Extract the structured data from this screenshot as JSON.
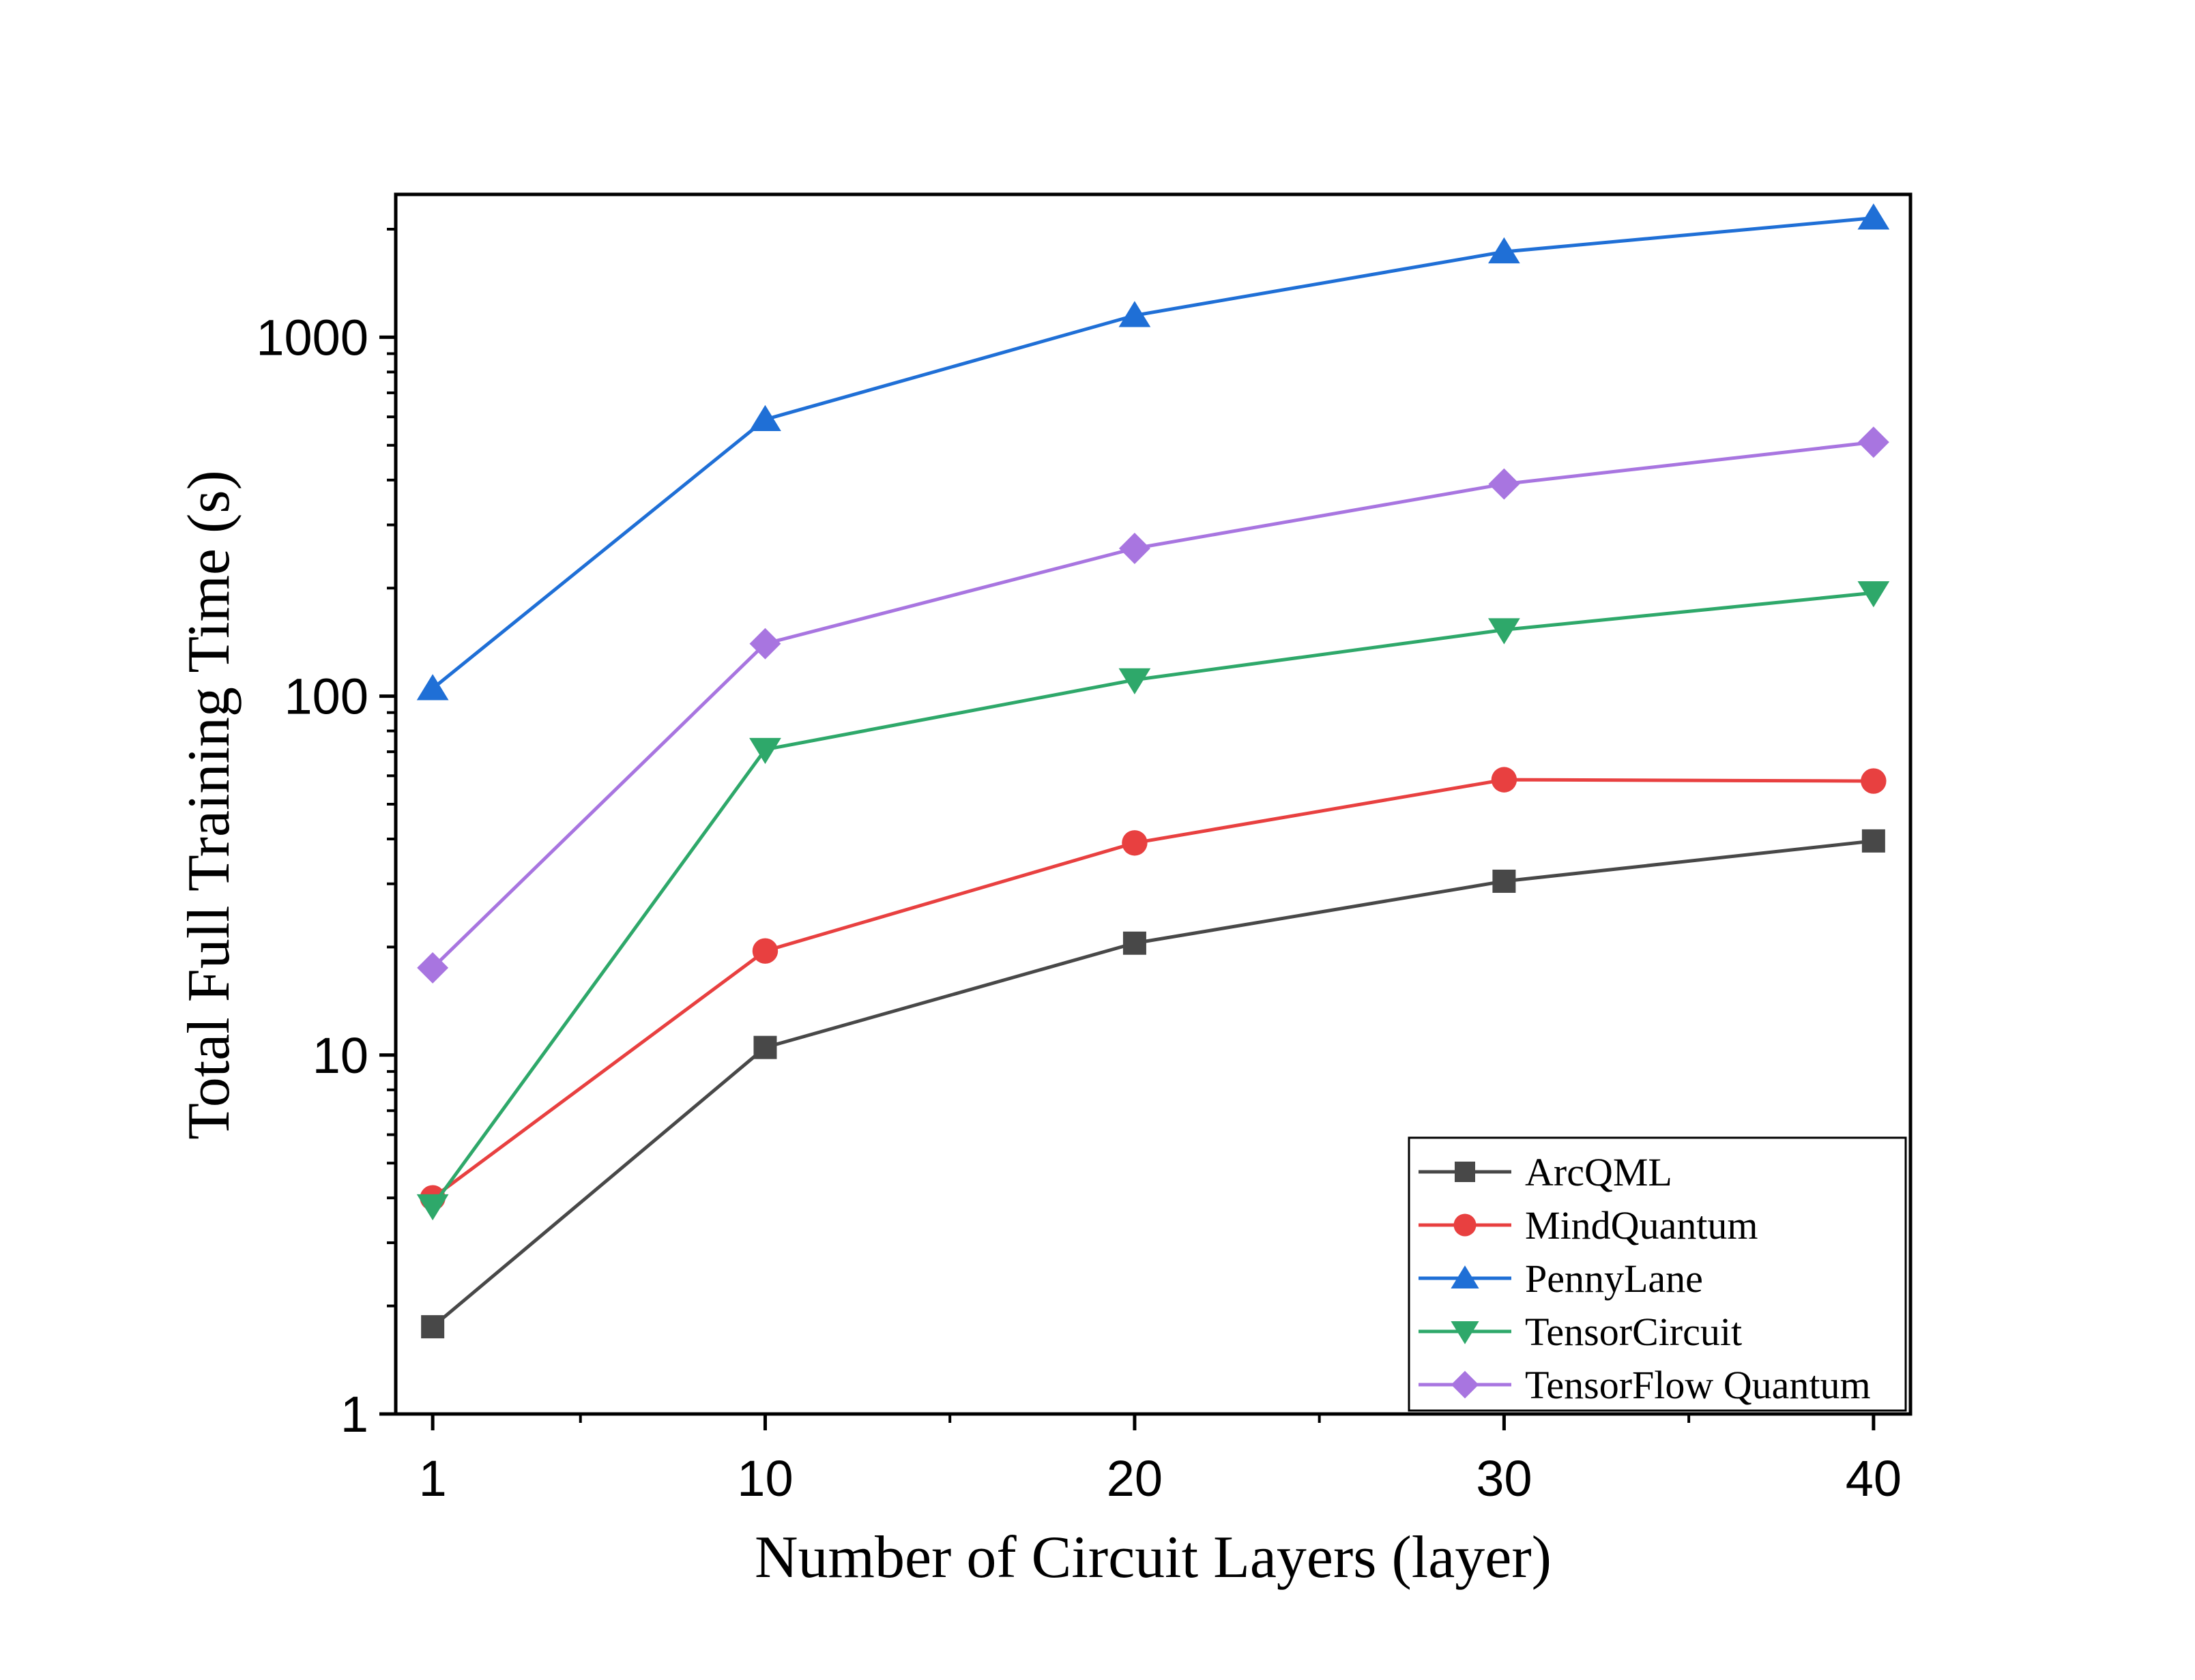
{
  "chart_data": {
    "type": "line",
    "title": "",
    "xlabel": "Number of Circuit Layers (layer)",
    "ylabel": "Total Full Training Time (s)",
    "x": [
      1,
      10,
      20,
      30,
      40
    ],
    "x_ticks": [
      "1",
      "10",
      "20",
      "30",
      "40"
    ],
    "xlim": [
      0,
      41
    ],
    "yscale": "log",
    "y_ticks": [
      "1",
      "10",
      "100",
      "1000"
    ],
    "ylim": [
      1,
      2500
    ],
    "grid": false,
    "legend_position": "bottom-right",
    "series": [
      {
        "name": "ArcQML",
        "marker": "square",
        "color": "#484848",
        "values": [
          1.75,
          10.5,
          20.5,
          30.5,
          39.5
        ]
      },
      {
        "name": "MindQuantum",
        "marker": "circle",
        "color": "#e84040",
        "values": [
          4.0,
          19.5,
          39.0,
          58.5,
          58.0
        ]
      },
      {
        "name": "PennyLane",
        "marker": "triangle-up",
        "color": "#1f6fd6",
        "values": [
          105,
          590,
          1150,
          1730,
          2150
        ]
      },
      {
        "name": "TensorCircuit",
        "marker": "triangle-down",
        "color": "#2ea86a",
        "values": [
          3.8,
          71,
          111,
          153,
          194
        ]
      },
      {
        "name": "TensorFlow Quantum",
        "marker": "diamond",
        "color": "#a875e0",
        "values": [
          17.5,
          140,
          258,
          390,
          510
        ]
      }
    ]
  }
}
